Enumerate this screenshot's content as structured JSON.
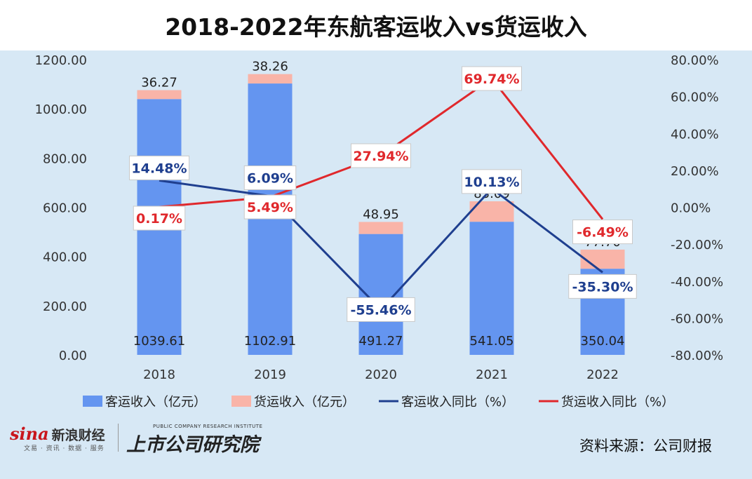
{
  "title": "2018-2022年东航客运收入vs货运收入",
  "source": "资料来源：公司财报",
  "brand": {
    "sina_logo": "sina",
    "sina_name": "新浪财经",
    "sina_sub": "文易 · 资讯 · 数据 · 服务",
    "institute_en": "PUBLIC COMPANY RESEARCH INSTITUTE",
    "institute": "上市公司研究院"
  },
  "chart_data": {
    "type": "bar",
    "stacked": true,
    "categories": [
      "2018",
      "2019",
      "2020",
      "2021",
      "2022"
    ],
    "left_axis": {
      "ylim": [
        0,
        1200
      ],
      "ticks": [
        "0.00",
        "200.00",
        "400.00",
        "600.00",
        "800.00",
        "1000.00",
        "1200.00"
      ]
    },
    "right_axis": {
      "ylim": [
        -80,
        80
      ],
      "ticks": [
        "-80.00%",
        "-60.00%",
        "-40.00%",
        "-20.00%",
        "0.00%",
        "20.00%",
        "40.00%",
        "60.00%",
        "80.00%"
      ]
    },
    "series": [
      {
        "name": "客运收入（亿元）",
        "kind": "bar",
        "color": "#6495f0",
        "values": [
          1039.61,
          1102.91,
          491.27,
          541.05,
          350.04
        ],
        "labels": [
          "1039.61",
          "1102.91",
          "491.27",
          "541.05",
          "350.04"
        ]
      },
      {
        "name": "货运收入（亿元）",
        "kind": "bar",
        "color": "#f9b4a8",
        "values": [
          36.27,
          38.26,
          48.95,
          83.09,
          77.7
        ],
        "labels": [
          "36.27",
          "38.26",
          "48.95",
          "83.09",
          "77.70"
        ]
      },
      {
        "name": "客运收入同比（%）",
        "kind": "line",
        "axis": "right",
        "color": "#1f3f8f",
        "values": [
          14.48,
          6.09,
          -55.46,
          10.13,
          -35.3
        ],
        "labels": [
          "14.48%",
          "6.09%",
          "-55.46%",
          "10.13%",
          "-35.30%"
        ]
      },
      {
        "name": "货运收入同比（%）",
        "kind": "line",
        "axis": "right",
        "color": "#e0282c",
        "values": [
          0.17,
          5.49,
          27.94,
          69.74,
          -6.49
        ],
        "labels": [
          "0.17%",
          "5.49%",
          "27.94%",
          "69.74%",
          "-6.49%"
        ]
      }
    ],
    "legend_position": "bottom",
    "grid": false
  }
}
